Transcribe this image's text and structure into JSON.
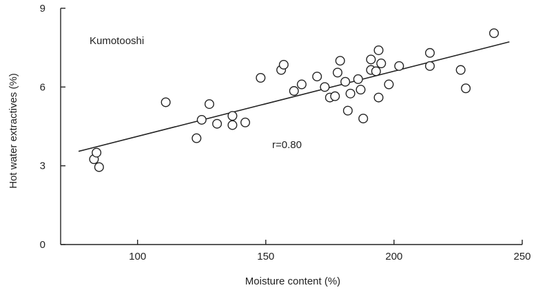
{
  "chart_data": {
    "type": "scatter",
    "title": "",
    "xlabel": "Moisture content (%)",
    "ylabel": "Hot water extractives (%)",
    "xlim": [
      70,
      250
    ],
    "ylim": [
      0,
      9
    ],
    "xticks": [
      100,
      150,
      200,
      250
    ],
    "yticks": [
      0,
      3,
      6,
      9
    ],
    "grid": false,
    "annotations": {
      "site": "Kumotooshi",
      "correlation": "r=0.80"
    },
    "fit_line": {
      "x": [
        77,
        245
      ],
      "y": [
        3.55,
        7.72
      ]
    },
    "series": [
      {
        "name": "",
        "points": [
          [
            83,
            3.25
          ],
          [
            84,
            3.5
          ],
          [
            85,
            2.95
          ],
          [
            111,
            5.42
          ],
          [
            123,
            4.05
          ],
          [
            125,
            4.75
          ],
          [
            128,
            5.35
          ],
          [
            131,
            4.6
          ],
          [
            137,
            4.55
          ],
          [
            137,
            4.9
          ],
          [
            142,
            4.65
          ],
          [
            148,
            6.35
          ],
          [
            156,
            6.65
          ],
          [
            157,
            6.85
          ],
          [
            161,
            5.85
          ],
          [
            164,
            6.1
          ],
          [
            170,
            6.4
          ],
          [
            173,
            6.0
          ],
          [
            175,
            5.6
          ],
          [
            177,
            5.65
          ],
          [
            178,
            6.55
          ],
          [
            179,
            7.0
          ],
          [
            181,
            6.2
          ],
          [
            182,
            5.1
          ],
          [
            183,
            5.75
          ],
          [
            186,
            6.3
          ],
          [
            187,
            5.9
          ],
          [
            188,
            4.8
          ],
          [
            191,
            7.05
          ],
          [
            191,
            6.65
          ],
          [
            193,
            6.6
          ],
          [
            194,
            7.4
          ],
          [
            194,
            5.6
          ],
          [
            195,
            6.9
          ],
          [
            198,
            6.1
          ],
          [
            202,
            6.8
          ],
          [
            214,
            7.3
          ],
          [
            214,
            6.8
          ],
          [
            226,
            6.65
          ],
          [
            228,
            5.95
          ],
          [
            239,
            8.05
          ]
        ]
      }
    ]
  }
}
